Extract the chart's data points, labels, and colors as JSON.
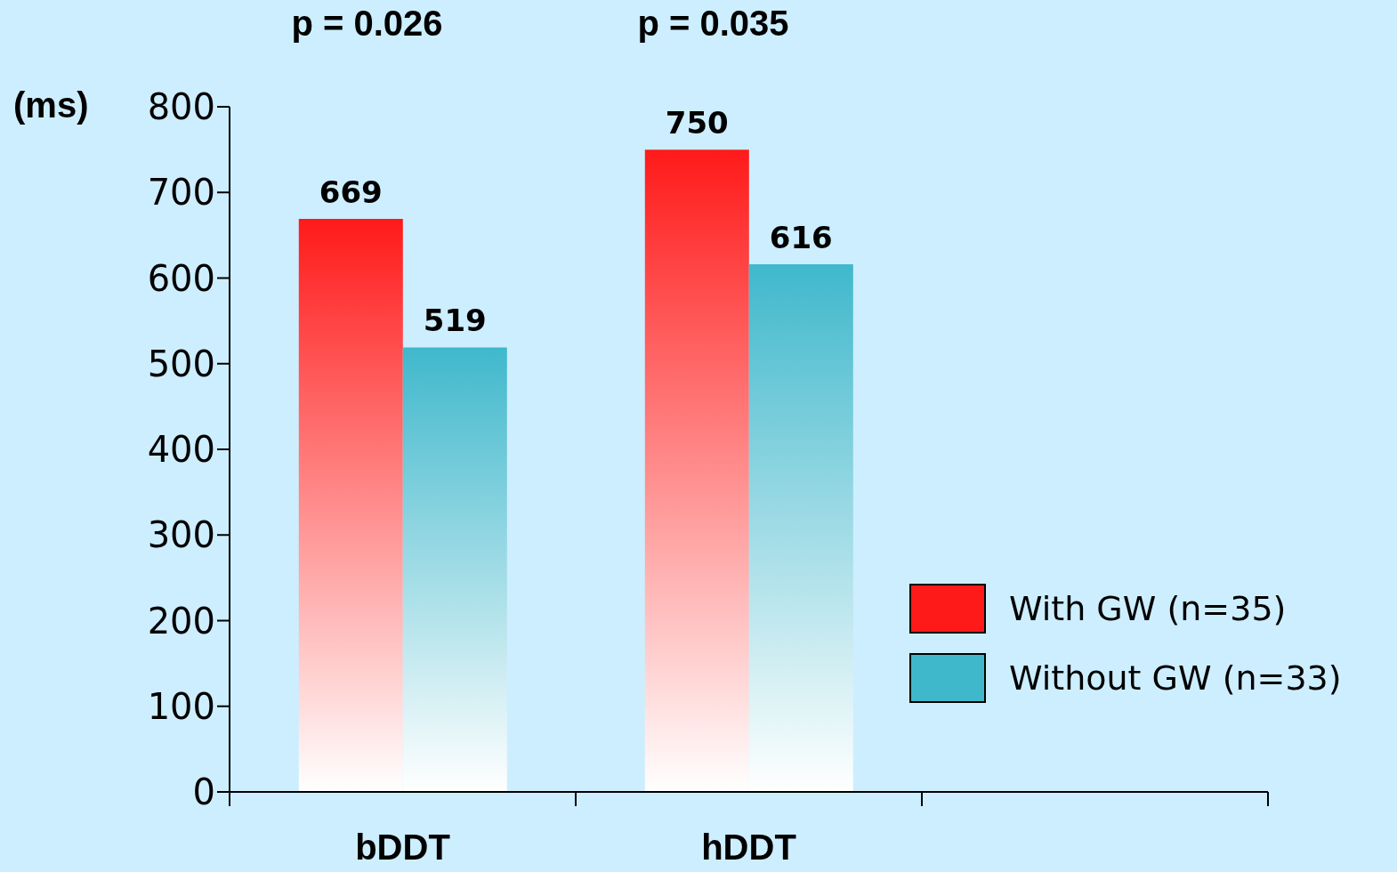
{
  "chart_data": {
    "type": "bar",
    "categories": [
      "bDDT",
      "hDDT",
      null
    ],
    "series": [
      {
        "name": "With GW (n=35)",
        "color": "#ff1a1a",
        "values": [
          669,
          750,
          null
        ]
      },
      {
        "name": "Without GW (n=33)",
        "color": "#40b8cc",
        "values": [
          519,
          616,
          null
        ]
      }
    ],
    "ylabel": "(ms)",
    "ylim": [
      0,
      800
    ],
    "yticks": [
      0,
      100,
      200,
      300,
      400,
      500,
      600,
      700,
      800
    ],
    "annotations": [
      "p = 0.026",
      "p = 0.035"
    ],
    "data_labels": true,
    "legend": "right",
    "grid": false
  }
}
